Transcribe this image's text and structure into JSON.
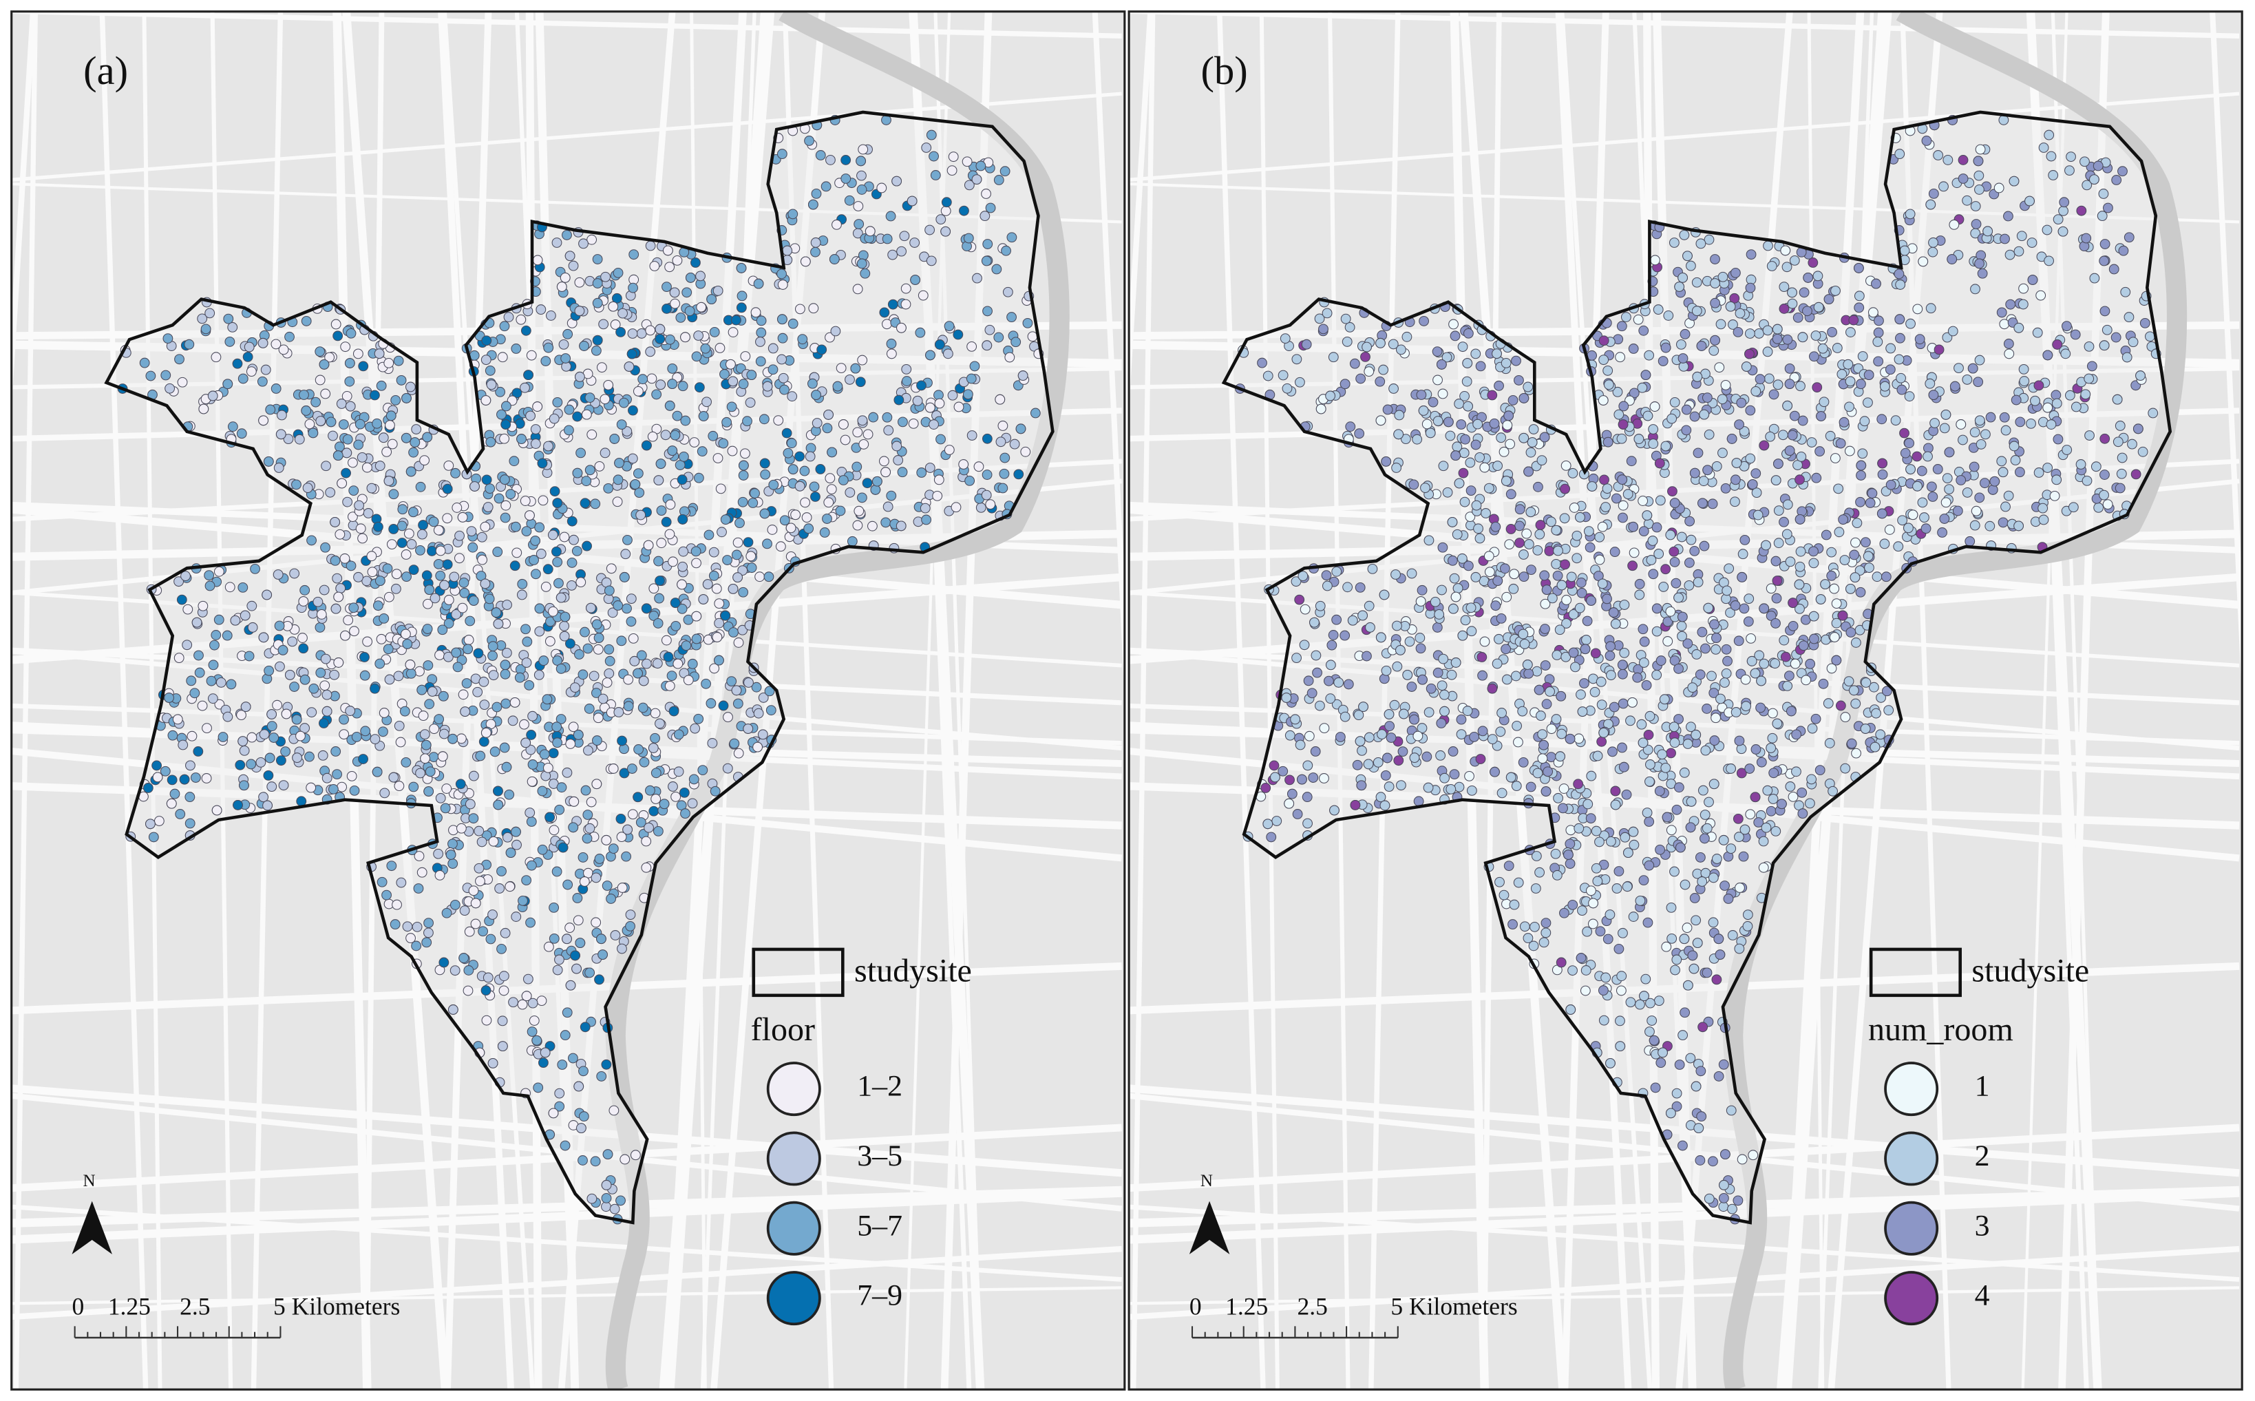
{
  "panels": [
    {
      "label": "(a)",
      "north": "N",
      "legend": {
        "boundary": "studysite",
        "title": "floor",
        "classes": [
          {
            "label": "1–2",
            "color": "#f1eef6"
          },
          {
            "label": "3–5",
            "color": "#bdc9e1"
          },
          {
            "label": "5–7",
            "color": "#74a9cf"
          },
          {
            "label": "7–9",
            "color": "#0570b0"
          }
        ]
      },
      "scale_bar": [
        "0",
        "1.25",
        "2.5",
        "5 Kilometers"
      ]
    },
    {
      "label": "(b)",
      "north": "N",
      "legend": {
        "boundary": "studysite",
        "title": "num_room",
        "classes": [
          {
            "label": "1",
            "color": "#edf8fb"
          },
          {
            "label": "2",
            "color": "#b3cde3"
          },
          {
            "label": "3",
            "color": "#8c96c6"
          },
          {
            "label": "4",
            "color": "#88419d"
          }
        ]
      },
      "scale_bar": [
        "0",
        "1.25",
        "2.5",
        "5 Kilometers"
      ]
    }
  ]
}
